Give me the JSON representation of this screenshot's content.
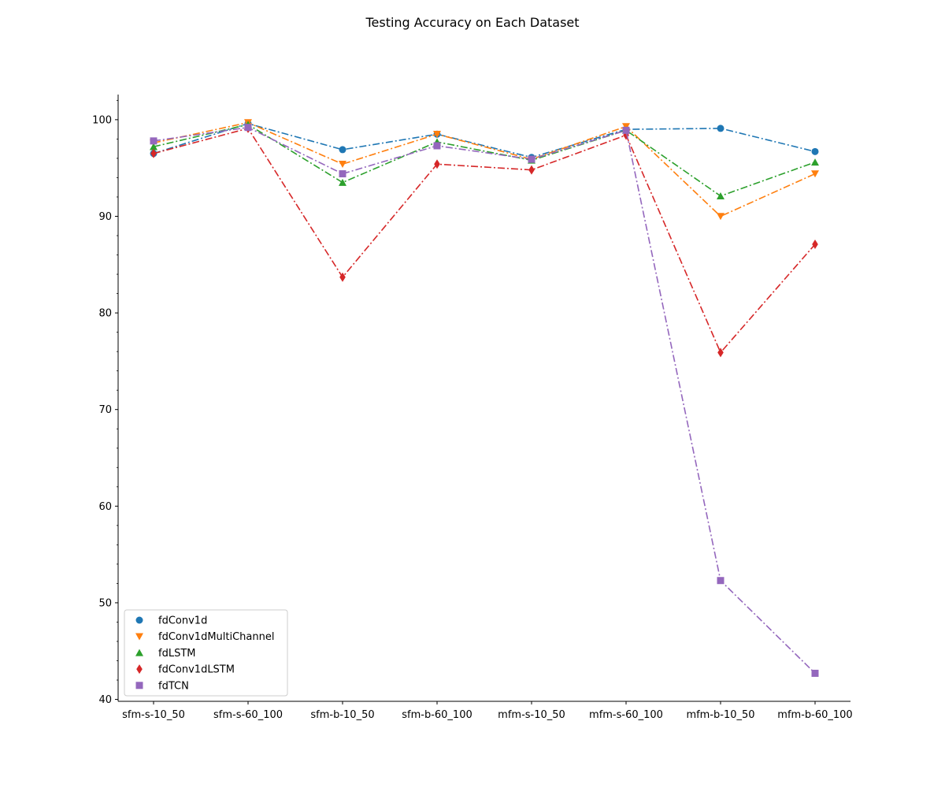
{
  "chart_data": {
    "type": "line",
    "title": "Testing Accuracy on Each Dataset",
    "xlabel": "",
    "ylabel": "",
    "categories": [
      "sfm-s-10_50",
      "sfm-s-60_100",
      "sfm-b-10_50",
      "sfm-b-60_100",
      "mfm-s-10_50",
      "mfm-s-60_100",
      "mfm-b-10_50",
      "mfm-b-60_100"
    ],
    "ylim": [
      39.8,
      102.6
    ],
    "yticks": [
      40,
      50,
      60,
      70,
      80,
      90,
      100
    ],
    "grid": false,
    "legend_position": "bottom-left",
    "line_style": "dash-dot",
    "series": [
      {
        "name": "fdConv1d",
        "color": "#1f77b4",
        "marker": "circle",
        "values": [
          96.5,
          99.6,
          96.9,
          98.5,
          96.1,
          99.0,
          99.1,
          96.7
        ]
      },
      {
        "name": "fdConv1dMultiChannel",
        "color": "#ff7f0e",
        "marker": "triangle-down",
        "values": [
          97.6,
          99.7,
          95.4,
          98.5,
          95.9,
          99.3,
          90.0,
          94.4
        ]
      },
      {
        "name": "fdLSTM",
        "color": "#2ca02c",
        "marker": "triangle-up",
        "values": [
          97.2,
          99.5,
          93.5,
          97.7,
          95.8,
          98.9,
          92.1,
          95.6
        ]
      },
      {
        "name": "fdConv1dLSTM",
        "color": "#d62728",
        "marker": "diamond",
        "values": [
          96.5,
          99.1,
          83.7,
          95.4,
          94.8,
          98.4,
          75.9,
          87.1
        ]
      },
      {
        "name": "fdTCN",
        "color": "#9467bd",
        "marker": "square",
        "values": [
          97.8,
          99.2,
          94.4,
          97.3,
          95.9,
          98.9,
          52.3,
          42.7
        ]
      }
    ]
  }
}
